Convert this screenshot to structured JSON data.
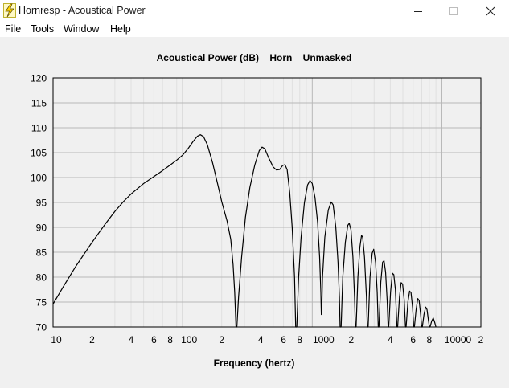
{
  "window": {
    "title": "Hornresp - Acoustical Power",
    "app_icon": "lightning-bolt-icon",
    "controls": [
      "minimize-icon",
      "maximize-icon",
      "close-icon"
    ]
  },
  "menu": {
    "items": [
      {
        "label": "File"
      },
      {
        "label": "Tools"
      },
      {
        "label": "Window"
      },
      {
        "label": "Help"
      }
    ]
  },
  "chart_data": {
    "type": "line",
    "title": "Acoustical Power (dB)    Horn    Unmasked",
    "xlabel": "Frequency (hertz)",
    "ylabel": "",
    "x_scale": "log",
    "xlim": [
      10,
      20000
    ],
    "ylim": [
      70,
      120
    ],
    "grid": true,
    "y_ticks": [
      70,
      75,
      80,
      85,
      90,
      95,
      100,
      105,
      110,
      115,
      120
    ],
    "x_tick_labels": [
      {
        "value": 10,
        "label": "10"
      },
      {
        "value": 20,
        "label": "2"
      },
      {
        "value": 40,
        "label": "4"
      },
      {
        "value": 60,
        "label": "6"
      },
      {
        "value": 80,
        "label": "8"
      },
      {
        "value": 100,
        "label": "100"
      },
      {
        "value": 200,
        "label": "2"
      },
      {
        "value": 400,
        "label": "4"
      },
      {
        "value": 600,
        "label": "6"
      },
      {
        "value": 800,
        "label": "8"
      },
      {
        "value": 1000,
        "label": "1000"
      },
      {
        "value": 2000,
        "label": "2"
      },
      {
        "value": 4000,
        "label": "4"
      },
      {
        "value": 6000,
        "label": "6"
      },
      {
        "value": 8000,
        "label": "8"
      },
      {
        "value": 10000,
        "label": "10000"
      },
      {
        "value": 20000,
        "label": "2"
      }
    ],
    "series": [
      {
        "color": "#000000",
        "points": [
          [
            10,
            74.6
          ],
          [
            12,
            78.1
          ],
          [
            15,
            82.2
          ],
          [
            20,
            87.0
          ],
          [
            25,
            90.5
          ],
          [
            30,
            93.2
          ],
          [
            35,
            95.2
          ],
          [
            40,
            96.7
          ],
          [
            50,
            98.8
          ],
          [
            60,
            100.2
          ],
          [
            70,
            101.4
          ],
          [
            80,
            102.5
          ],
          [
            90,
            103.5
          ],
          [
            100,
            104.5
          ],
          [
            110,
            105.8
          ],
          [
            120,
            107.2
          ],
          [
            130,
            108.3
          ],
          [
            137,
            108.6
          ],
          [
            145,
            108.2
          ],
          [
            155,
            106.6
          ],
          [
            170,
            103.0
          ],
          [
            185,
            99.0
          ],
          [
            200,
            95.2
          ],
          [
            220,
            91.3
          ],
          [
            235,
            87.6
          ],
          [
            245,
            82.5
          ],
          [
            252,
            77.0
          ],
          [
            258,
            70.0
          ],
          [
            262,
            70.0
          ],
          [
            270,
            76.0
          ],
          [
            285,
            84.0
          ],
          [
            305,
            92.0
          ],
          [
            330,
            98.0
          ],
          [
            360,
            102.5
          ],
          [
            390,
            105.4
          ],
          [
            410,
            106.1
          ],
          [
            430,
            105.8
          ],
          [
            460,
            104.0
          ],
          [
            500,
            102.1
          ],
          [
            530,
            101.5
          ],
          [
            560,
            101.6
          ],
          [
            590,
            102.4
          ],
          [
            615,
            102.6
          ],
          [
            640,
            101.6
          ],
          [
            670,
            97.0
          ],
          [
            700,
            90.0
          ],
          [
            730,
            80.0
          ],
          [
            745,
            70.0
          ],
          [
            760,
            70.0
          ],
          [
            785,
            80.0
          ],
          [
            820,
            88.0
          ],
          [
            870,
            95.0
          ],
          [
            920,
            98.5
          ],
          [
            960,
            99.4
          ],
          [
            1000,
            98.8
          ],
          [
            1050,
            96.0
          ],
          [
            1100,
            91.0
          ],
          [
            1140,
            84.0
          ],
          [
            1165,
            77.0
          ],
          [
            1175,
            72.5
          ],
          [
            1182,
            72.5
          ],
          [
            1200,
            80.0
          ],
          [
            1250,
            88.0
          ],
          [
            1330,
            93.5
          ],
          [
            1400,
            95.1
          ],
          [
            1450,
            94.5
          ],
          [
            1520,
            90.0
          ],
          [
            1580,
            83.0
          ],
          [
            1620,
            76.0
          ],
          [
            1640,
            70.0
          ],
          [
            1670,
            70.0
          ],
          [
            1720,
            80.0
          ],
          [
            1800,
            87.0
          ],
          [
            1880,
            90.4
          ],
          [
            1930,
            90.8
          ],
          [
            1990,
            89.5
          ],
          [
            2060,
            84.0
          ],
          [
            2120,
            76.0
          ],
          [
            2150,
            70.0
          ],
          [
            2180,
            70.0
          ],
          [
            2250,
            80.0
          ],
          [
            2330,
            86.0
          ],
          [
            2400,
            88.4
          ],
          [
            2450,
            88.0
          ],
          [
            2530,
            84.0
          ],
          [
            2620,
            76.0
          ],
          [
            2660,
            70.0
          ],
          [
            2700,
            70.0
          ],
          [
            2790,
            80.0
          ],
          [
            2900,
            84.8
          ],
          [
            2980,
            85.6
          ],
          [
            3080,
            83.0
          ],
          [
            3170,
            77.0
          ],
          [
            3230,
            70.0
          ],
          [
            3270,
            70.0
          ],
          [
            3380,
            79.0
          ],
          [
            3490,
            83.0
          ],
          [
            3580,
            83.3
          ],
          [
            3680,
            81.0
          ],
          [
            3790,
            75.0
          ],
          [
            3850,
            70.0
          ],
          [
            3890,
            70.0
          ],
          [
            4020,
            77.0
          ],
          [
            4150,
            80.8
          ],
          [
            4260,
            80.5
          ],
          [
            4380,
            77.5
          ],
          [
            4500,
            70.0
          ],
          [
            4560,
            70.0
          ],
          [
            4710,
            76.0
          ],
          [
            4850,
            78.9
          ],
          [
            4980,
            78.6
          ],
          [
            5120,
            75.5
          ],
          [
            5240,
            70.0
          ],
          [
            5300,
            70.0
          ],
          [
            5470,
            75.0
          ],
          [
            5640,
            77.2
          ],
          [
            5780,
            76.9
          ],
          [
            5940,
            74.0
          ],
          [
            6070,
            70.0
          ],
          [
            6140,
            70.0
          ],
          [
            6330,
            73.5
          ],
          [
            6520,
            75.7
          ],
          [
            6680,
            75.3
          ],
          [
            6860,
            72.5
          ],
          [
            6990,
            70.0
          ],
          [
            7070,
            70.0
          ],
          [
            7280,
            72.5
          ],
          [
            7500,
            74.0
          ],
          [
            7680,
            73.5
          ],
          [
            7880,
            71.3
          ],
          [
            8020,
            70.0
          ],
          [
            8110,
            70.0
          ],
          [
            8350,
            71.2
          ],
          [
            8580,
            71.8
          ],
          [
            8790,
            71.0
          ],
          [
            9000,
            70.0
          ]
        ]
      }
    ]
  }
}
